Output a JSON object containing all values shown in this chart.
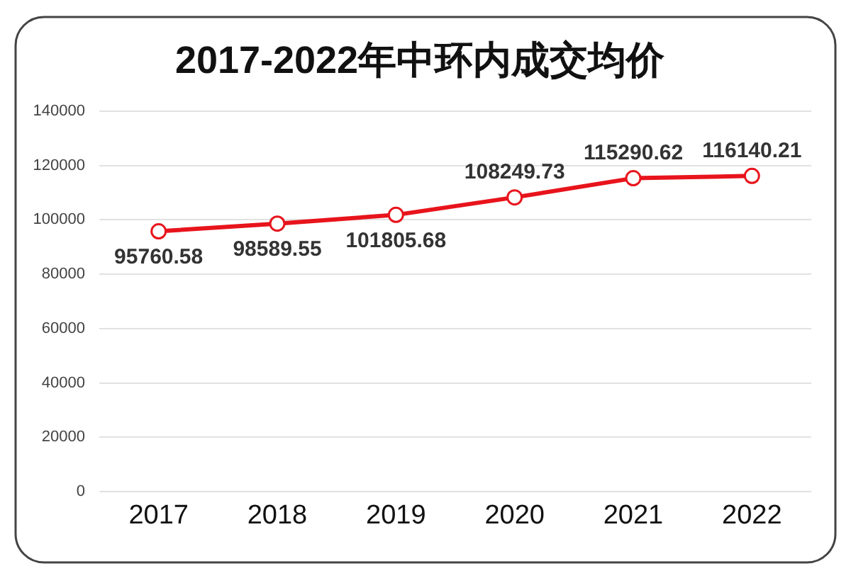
{
  "chart_data": {
    "type": "line",
    "title": "2017-2022年中环内成交均价",
    "categories": [
      "2017",
      "2018",
      "2019",
      "2020",
      "2021",
      "2022"
    ],
    "series": [
      {
        "color": "#e8141c",
        "values": [
          95760.58,
          98589.55,
          101805.68,
          108249.73,
          115290.62,
          116140.21
        ]
      }
    ],
    "ylim": [
      0,
      140000
    ],
    "yticks": [
      0,
      20000,
      40000,
      60000,
      80000,
      100000,
      120000,
      140000
    ],
    "grid": "y",
    "marker": "circle",
    "line_style": "solid",
    "data_labels": true
  }
}
